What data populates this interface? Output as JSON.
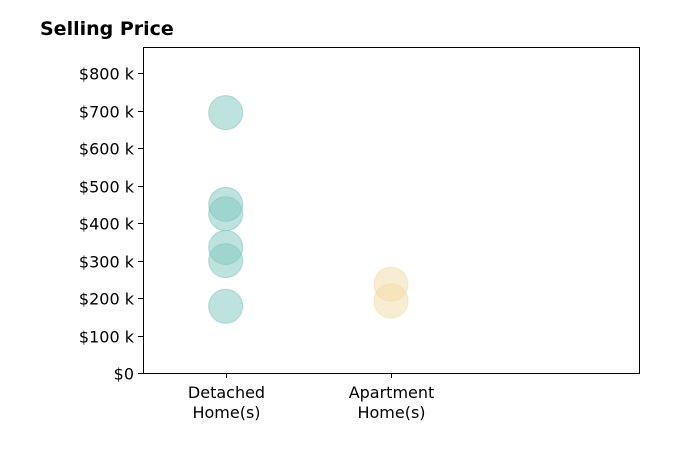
{
  "chart_data": {
    "type": "scatter",
    "title": "Selling Price",
    "xlabel": "",
    "ylabel": "",
    "categories": [
      "Detached\nHome(s)",
      "Apartment\nHome(s)"
    ],
    "xlim": [
      -0.5,
      2.5
    ],
    "ylim": [
      0,
      870
    ],
    "y_ticks": [
      0,
      100,
      200,
      300,
      400,
      500,
      600,
      700,
      800
    ],
    "y_tick_labels": [
      "$0",
      "$100 k",
      "$200 k",
      "$300 k",
      "$400 k",
      "$500 k",
      "$600 k",
      "$700 k",
      "$800 k"
    ],
    "grid": false,
    "series": [
      {
        "category_index": 0,
        "values": [
          695,
          450,
          425,
          335,
          300,
          178
        ],
        "color": "#7ec8be"
      },
      {
        "category_index": 1,
        "values": [
          237,
          192
        ],
        "color": "#f2dca6"
      }
    ]
  }
}
